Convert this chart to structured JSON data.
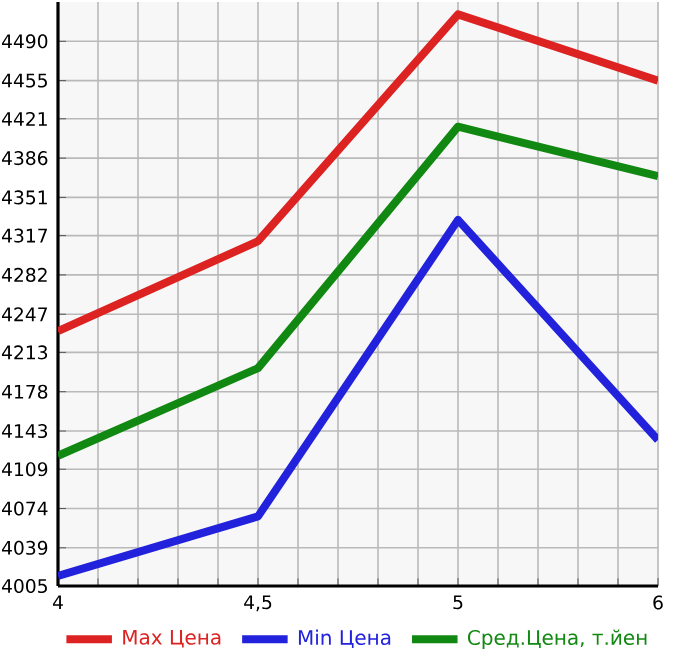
{
  "chart_data": {
    "type": "line",
    "categories": [
      "4",
      "4,5",
      "5",
      "6"
    ],
    "series": [
      {
        "name": "Max Цена",
        "color": "#dd2222",
        "values": [
          4232,
          4312,
          4514,
          4455
        ]
      },
      {
        "name": "Min Цена",
        "color": "#2222dd",
        "values": [
          4014,
          4067,
          4331,
          4135
        ]
      },
      {
        "name": "Сред.Цена, т.йен",
        "color": "#118811",
        "values": [
          4121,
          4199,
          4414,
          4370
        ]
      }
    ],
    "ylim": [
      4005,
      4525
    ],
    "yticks": [
      4005,
      4039,
      4074,
      4109,
      4143,
      4178,
      4213,
      4247,
      4282,
      4317,
      4351,
      4386,
      4421,
      4455,
      4490
    ],
    "grid": true,
    "legend": "bottom"
  }
}
